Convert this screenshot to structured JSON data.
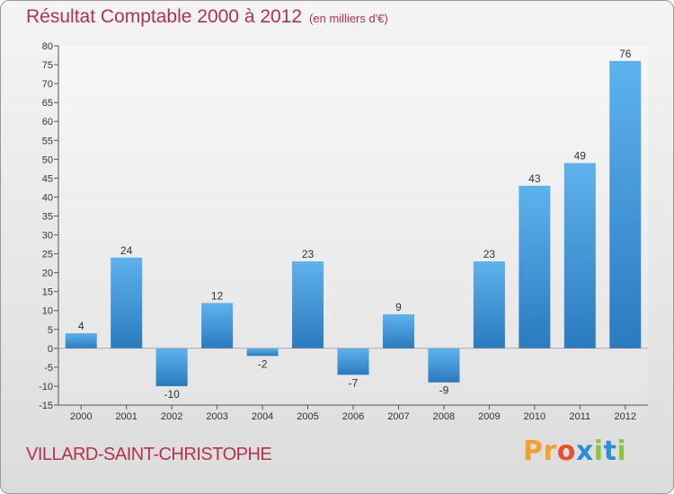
{
  "header": {
    "title": "Résultat Comptable 2000 à 2012",
    "subtitle": "(en milliers d'€)"
  },
  "footer": {
    "commune": "VILLARD-SAINT-CHRISTOPHE",
    "logo_letters": [
      "P",
      "r",
      "o",
      "x",
      "i",
      "t",
      "i"
    ],
    "logo_colors": [
      "#f0a22e",
      "#f0a22e",
      "#e8502a",
      "#2b8fd6",
      "#8cc43c",
      "#2b8fd6",
      "#8cc43c"
    ]
  },
  "colors": {
    "accent": "#b5324f",
    "bar_light": "#5eb2ec",
    "bar_dark": "#2a7bbf"
  },
  "chart_data": {
    "type": "bar",
    "title": "Résultat Comptable 2000 à 2012",
    "subtitle": "(en milliers d'€)",
    "xlabel": "",
    "ylabel": "",
    "categories": [
      "2000",
      "2001",
      "2002",
      "2003",
      "2004",
      "2005",
      "2006",
      "2007",
      "2008",
      "2009",
      "2010",
      "2011",
      "2012"
    ],
    "values": [
      4,
      24,
      -10,
      12,
      -2,
      23,
      -7,
      9,
      -9,
      23,
      43,
      49,
      76
    ],
    "labels": [
      "4",
      "24",
      "-10",
      "12",
      "-2",
      "23",
      "-7",
      "9",
      "-9",
      "23",
      "43",
      "49",
      "76"
    ],
    "ylim": [
      -15,
      80
    ],
    "yticks": [
      -15,
      -10,
      -5,
      0,
      5,
      10,
      15,
      20,
      25,
      30,
      35,
      40,
      45,
      50,
      55,
      60,
      65,
      70,
      75,
      80
    ],
    "grid": false,
    "legend": "none"
  }
}
